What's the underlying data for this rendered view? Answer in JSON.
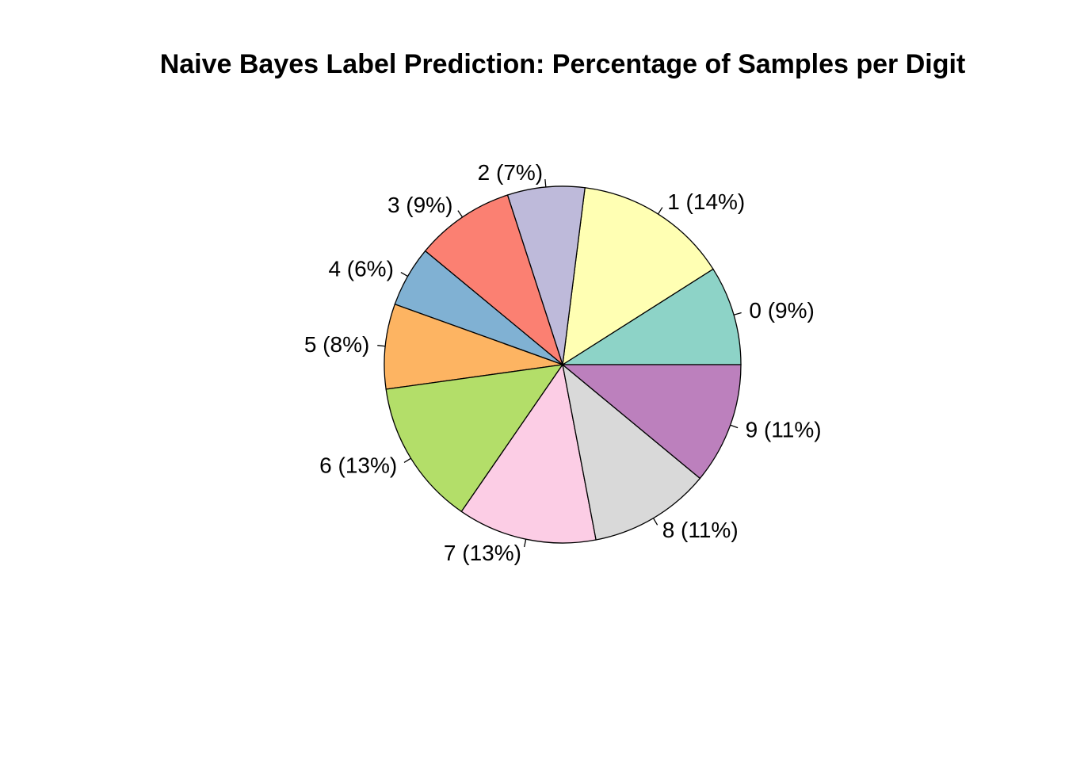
{
  "chart_data": {
    "type": "pie",
    "title": "Naive Bayes Label Prediction: Percentage of Samples per Digit",
    "direction": "counterclockwise",
    "start": "3 o'clock",
    "slices": [
      {
        "label": "0 (9%)",
        "value": 9.0,
        "color": "#8DD3C7"
      },
      {
        "label": "1 (14%)",
        "value": 14.0,
        "color": "#FFFFB3"
      },
      {
        "label": "2 (7%)",
        "value": 7.0,
        "color": "#BEBADA"
      },
      {
        "label": "3 (9%)",
        "value": 9.0,
        "color": "#FB8072"
      },
      {
        "label": "4 (6%)",
        "value": 5.5,
        "color": "#80B1D3"
      },
      {
        "label": "5 (8%)",
        "value": 7.7,
        "color": "#FDB462"
      },
      {
        "label": "6 (13%)",
        "value": 13.2,
        "color": "#B3DE69"
      },
      {
        "label": "7 (13%)",
        "value": 12.6,
        "color": "#FCCDE5"
      },
      {
        "label": "8 (11%)",
        "value": 11.0,
        "color": "#D9D9D9"
      },
      {
        "label": "9 (11%)",
        "value": 11.0,
        "color": "#BC80BD"
      }
    ]
  }
}
